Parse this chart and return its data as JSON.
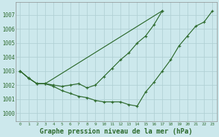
{
  "background_color": "#cce8ec",
  "grid_color": "#b0d0d4",
  "line_color": "#2d6a2d",
  "xlabel": "Graphe pression niveau de la mer (hPa)",
  "xlabel_fontsize": 7,
  "ylabel_ticks": [
    1000,
    1001,
    1002,
    1003,
    1004,
    1005,
    1006,
    1007
  ],
  "xlim": [
    -0.5,
    23.5
  ],
  "ylim": [
    999.4,
    1007.9
  ],
  "series1_x": [
    0,
    1,
    2,
    3,
    4,
    5,
    6,
    7,
    8,
    9,
    10,
    11,
    12,
    13,
    14,
    15,
    16,
    17,
    18,
    19,
    20,
    21,
    22,
    23
  ],
  "series1_y": [
    1003.0,
    1002.5,
    1002.1,
    1002.1,
    1001.9,
    1001.6,
    1001.4,
    1001.2,
    1001.1,
    1000.9,
    1000.8,
    1000.8,
    1000.8,
    1000.6,
    1000.5,
    1001.5,
    1002.2,
    1003.0,
    1003.8,
    1004.8,
    1005.5,
    1006.2,
    1006.5,
    1007.3
  ],
  "series2_x": [
    0,
    1,
    2,
    3,
    4,
    5,
    6,
    7,
    8,
    9,
    10,
    11,
    12,
    13,
    14,
    15,
    16,
    17
  ],
  "series2_y": [
    1003.0,
    1002.5,
    1002.1,
    1002.1,
    1002.0,
    1001.9,
    1002.0,
    1002.1,
    1001.8,
    1002.0,
    1002.6,
    1003.2,
    1003.8,
    1004.3,
    1005.0,
    1005.5,
    1006.3,
    1007.3
  ],
  "series3_x": [
    0,
    1,
    2,
    3,
    17
  ],
  "series3_y": [
    1003.0,
    1002.5,
    1002.1,
    1002.1,
    1007.3
  ]
}
